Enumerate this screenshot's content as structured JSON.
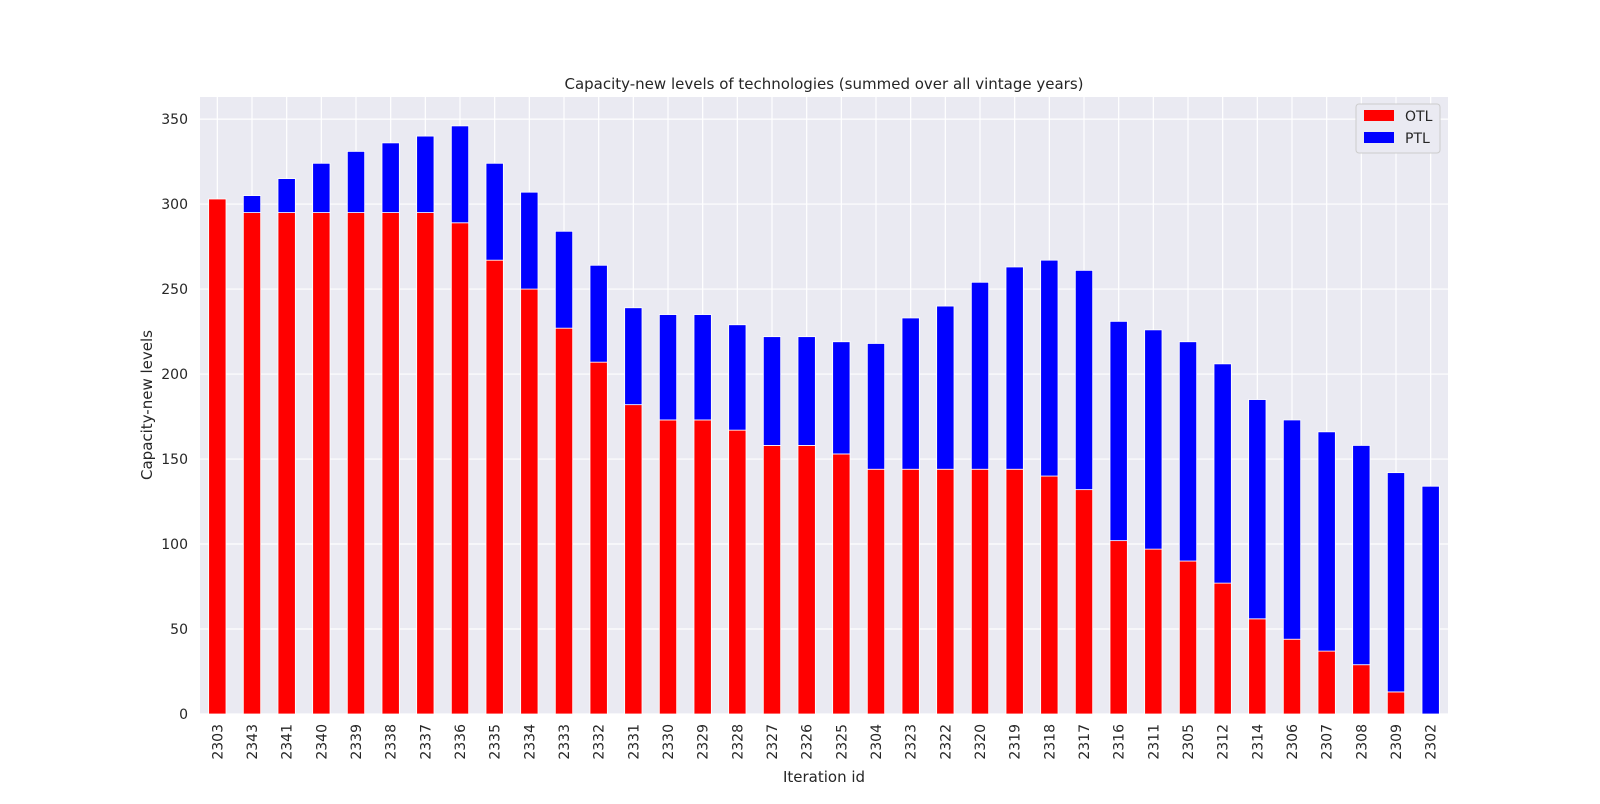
{
  "chart_data": {
    "type": "bar",
    "stacked": true,
    "title": "Capacity-new levels of technologies (summed over all vintage years)",
    "xlabel": "Iteration id",
    "ylabel": "Capacity-new levels",
    "ylim": [
      0,
      363
    ],
    "yticks": [
      0,
      50,
      100,
      150,
      200,
      250,
      300,
      350
    ],
    "grid": true,
    "legend_position": "top-right",
    "categories": [
      "2303",
      "2343",
      "2341",
      "2340",
      "2339",
      "2338",
      "2337",
      "2336",
      "2335",
      "2334",
      "2333",
      "2332",
      "2331",
      "2330",
      "2329",
      "2328",
      "2327",
      "2326",
      "2325",
      "2304",
      "2323",
      "2322",
      "2320",
      "2319",
      "2318",
      "2317",
      "2316",
      "2311",
      "2305",
      "2312",
      "2314",
      "2306",
      "2307",
      "2308",
      "2309",
      "2302"
    ],
    "series": [
      {
        "name": "OTL",
        "color": "#ff0000",
        "values": [
          303,
          295,
          295,
          295,
          295,
          295,
          295,
          289,
          267,
          250,
          227,
          207,
          182,
          173,
          173,
          167,
          158,
          158,
          153,
          144,
          144,
          144,
          144,
          144,
          140,
          132,
          102,
          97,
          90,
          77,
          56,
          44,
          37,
          29,
          13,
          0
        ]
      },
      {
        "name": "PTL",
        "color": "#0000ff",
        "values": [
          0,
          10,
          20,
          29,
          36,
          41,
          45,
          57,
          57,
          57,
          57,
          57,
          57,
          62,
          62,
          62,
          64,
          64,
          66,
          74,
          89,
          96,
          110,
          119,
          127,
          129,
          129,
          129,
          129,
          129,
          129,
          129,
          129,
          129,
          129,
          134
        ]
      }
    ]
  }
}
